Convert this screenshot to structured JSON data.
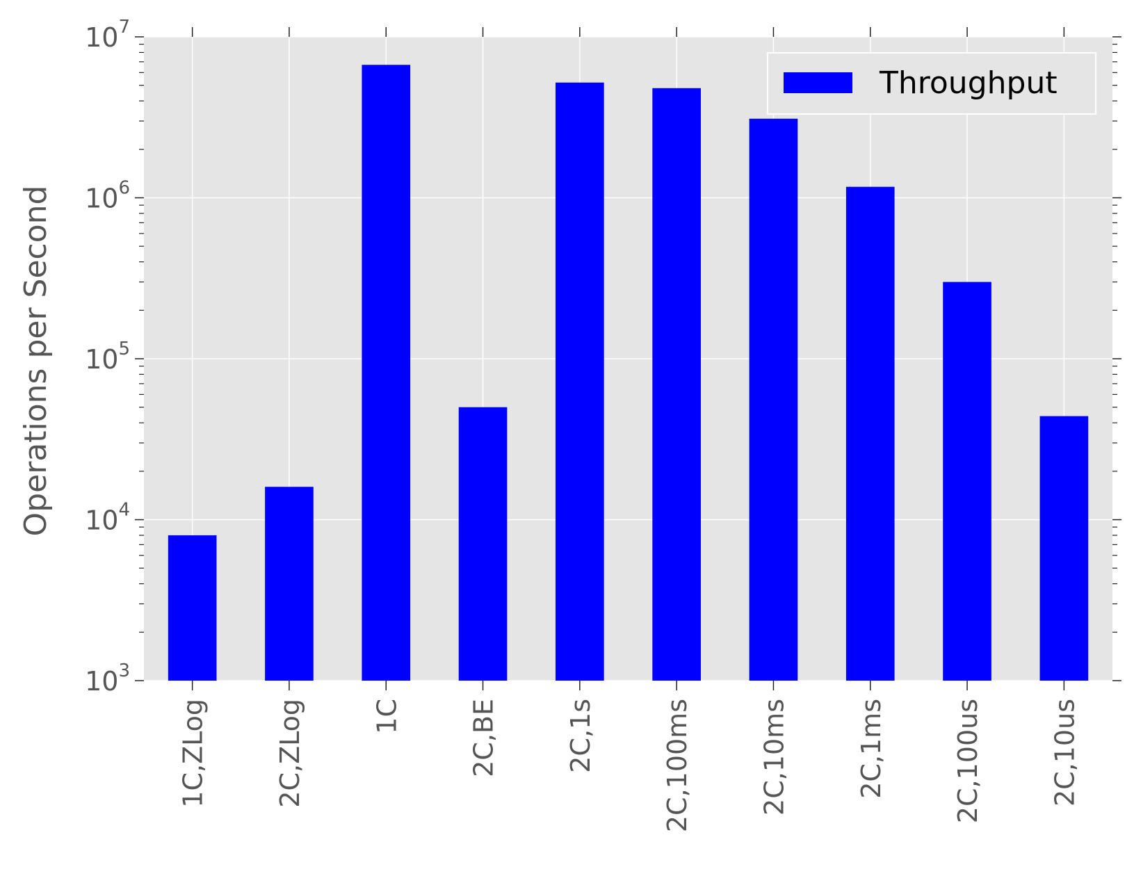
{
  "chart_data": {
    "type": "bar",
    "title": "",
    "xlabel": "",
    "ylabel": "Operations per Second",
    "yscale": "log",
    "ylim": [
      1000,
      10000000
    ],
    "grid": true,
    "legend_position": "top-right",
    "colors": {
      "bar": "#0000ff",
      "plot_background": "#e5e5e5",
      "grid": "#ffffff",
      "tick_label": "#555555",
      "legend_text": "#000000"
    },
    "categories": [
      "1C,ZLog",
      "2C,ZLog",
      "1C",
      "2C,BE",
      "2C,1s",
      "2C,100ms",
      "2C,10ms",
      "2C,1ms",
      "2C,100us",
      "2C,10us"
    ],
    "series": [
      {
        "name": "Throughput",
        "values": [
          8000,
          16000,
          6700000,
          50000,
          5200000,
          4800000,
          3100000,
          1170000,
          300000,
          44000
        ]
      }
    ],
    "y_ticks": [
      {
        "base": "10",
        "exp": "3",
        "value": 1000
      },
      {
        "base": "10",
        "exp": "4",
        "value": 10000
      },
      {
        "base": "10",
        "exp": "5",
        "value": 100000
      },
      {
        "base": "10",
        "exp": "6",
        "value": 1000000
      },
      {
        "base": "10",
        "exp": "7",
        "value": 10000000
      }
    ]
  }
}
